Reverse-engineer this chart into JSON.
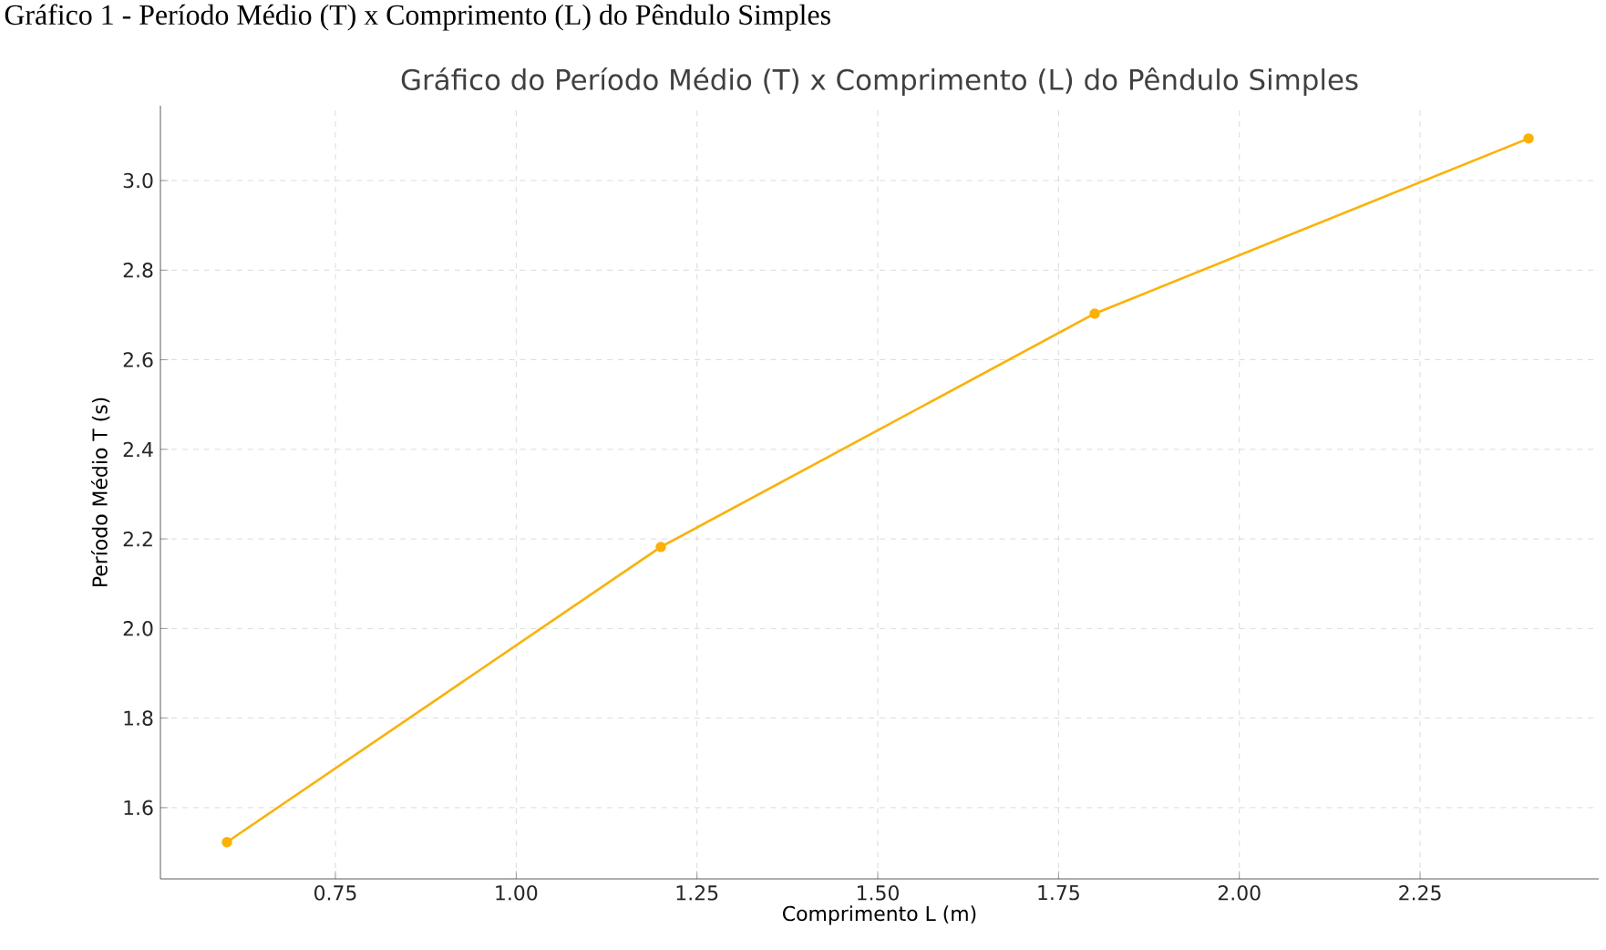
{
  "chart_data": {
    "type": "line",
    "title": "Gráfico do Período Médio (T) x Comprimento (L) do Pêndulo Simples",
    "xlabel": "Comprimento L (m)",
    "ylabel": "Período Médio T (s)",
    "annotations": [
      "Gráfico 1 - Período Médio (T) x Comprimento (L) do Pêndulo Simples"
    ],
    "x": [
      0.6,
      1.2,
      1.8,
      2.4
    ],
    "series": [
      {
        "color": "#ffb000",
        "values": [
          1.523,
          2.182,
          2.703,
          3.094
        ]
      }
    ],
    "xlim": [
      0.508,
      2.497
    ],
    "ylim": [
      1.441,
      3.167
    ],
    "xticks": [
      0.75,
      {
        "value": 1,
        "label": "1.00"
      },
      1.25,
      {
        "value": 1.5,
        "label": "1.50"
      },
      1.75,
      {
        "value": 2,
        "label": "2.00"
      },
      2.25
    ],
    "yticks": [
      1.6,
      1.8,
      {
        "value": 2,
        "label": "2.0"
      },
      2.2,
      2.4,
      2.6,
      2.8,
      {
        "value": 3,
        "label": "3.0"
      }
    ],
    "grid": true,
    "marker": "circle",
    "line_style": "solid"
  }
}
